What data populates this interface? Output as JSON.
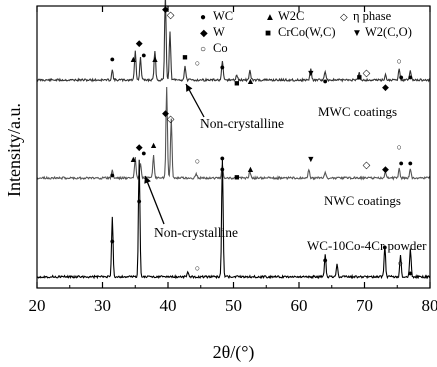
{
  "chart_data": {
    "type": "line",
    "xlabel": "2θ/(°)",
    "ylabel": "Intensity/a.u.",
    "xlim": [
      20,
      80
    ],
    "x_ticks": [
      "20",
      "30",
      "40",
      "50",
      "60",
      "70",
      "80"
    ],
    "grid": false,
    "legend_position": "top",
    "legend": [
      {
        "symbol": "●",
        "text": "WC"
      },
      {
        "symbol": "▲",
        "text": "W2C"
      },
      {
        "symbol": "◇",
        "text": "η phase"
      },
      {
        "symbol": "◆",
        "text": "W"
      },
      {
        "symbol": "■",
        "text": "CrCo(W,C)"
      },
      {
        "symbol": "▼",
        "text": "W2(C,O)"
      },
      {
        "symbol": "○",
        "text": "Co"
      }
    ],
    "annotations": [
      {
        "text": "Non-crystalline",
        "x": 39.5
      },
      {
        "text": "Non-crystalline",
        "x": 40.5
      }
    ],
    "series": [
      {
        "name": "MWC coatings",
        "color": "#333333",
        "baseline": 0.18,
        "peaks": [
          {
            "x": 31.5,
            "h": 0.1
          },
          {
            "x": 35.0,
            "h": 0.3
          },
          {
            "x": 35.8,
            "h": 0.22
          },
          {
            "x": 38.0,
            "h": 0.3
          },
          {
            "x": 39.6,
            "h": 0.86
          },
          {
            "x": 40.3,
            "h": 0.48
          },
          {
            "x": 42.6,
            "h": 0.14
          },
          {
            "x": 48.3,
            "h": 0.19
          },
          {
            "x": 50.5,
            "h": 0.05
          },
          {
            "x": 52.5,
            "h": 0.1
          },
          {
            "x": 61.8,
            "h": 0.12
          },
          {
            "x": 64.0,
            "h": 0.09
          },
          {
            "x": 69.2,
            "h": 0.08
          },
          {
            "x": 73.2,
            "h": 0.05
          },
          {
            "x": 75.3,
            "h": 0.12
          },
          {
            "x": 77.0,
            "h": 0.1
          }
        ],
        "markers": [
          {
            "x": 31.5,
            "symbol": "●"
          },
          {
            "x": 34.7,
            "symbol": "▲"
          },
          {
            "x": 35.6,
            "symbol": "◆"
          },
          {
            "x": 36.3,
            "symbol": "●"
          },
          {
            "x": 38.0,
            "symbol": "▲"
          },
          {
            "x": 39.6,
            "symbol": "◆"
          },
          {
            "x": 40.4,
            "symbol": "◇"
          },
          {
            "x": 42.6,
            "symbol": "■"
          },
          {
            "x": 44.5,
            "symbol": "○"
          },
          {
            "x": 48.3,
            "symbol": "●"
          },
          {
            "x": 50.5,
            "symbol": "■"
          },
          {
            "x": 52.6,
            "symbol": "▲"
          },
          {
            "x": 61.8,
            "symbol": "▼"
          },
          {
            "x": 64.0,
            "symbol": "●"
          },
          {
            "x": 69.2,
            "symbol": "■"
          },
          {
            "x": 70.3,
            "symbol": "◇"
          },
          {
            "x": 73.2,
            "symbol": "◆"
          },
          {
            "x": 75.3,
            "symbol": "○"
          },
          {
            "x": 75.6,
            "symbol": "●"
          },
          {
            "x": 77.0,
            "symbol": "●"
          }
        ]
      },
      {
        "name": "NWC coatings",
        "color": "#555555",
        "baseline": 0.18,
        "peaks": [
          {
            "x": 31.5,
            "h": 0.08
          },
          {
            "x": 35.0,
            "h": 0.2
          },
          {
            "x": 35.8,
            "h": 0.15
          },
          {
            "x": 37.8,
            "h": 0.22
          },
          {
            "x": 39.8,
            "h": 0.92
          },
          {
            "x": 40.5,
            "h": 0.6
          },
          {
            "x": 44.3,
            "h": 0.05
          },
          {
            "x": 48.3,
            "h": 0.12
          },
          {
            "x": 52.5,
            "h": 0.07
          },
          {
            "x": 61.5,
            "h": 0.08
          },
          {
            "x": 64.0,
            "h": 0.05
          },
          {
            "x": 73.2,
            "h": 0.06
          },
          {
            "x": 75.3,
            "h": 0.1
          },
          {
            "x": 77.0,
            "h": 0.09
          }
        ],
        "markers": [
          {
            "x": 31.5,
            "symbol": "●"
          },
          {
            "x": 34.7,
            "symbol": "▲"
          },
          {
            "x": 35.6,
            "symbol": "◆"
          },
          {
            "x": 36.3,
            "symbol": "●"
          },
          {
            "x": 37.8,
            "symbol": "▲"
          },
          {
            "x": 39.6,
            "symbol": "◆"
          },
          {
            "x": 40.4,
            "symbol": "◇"
          },
          {
            "x": 44.5,
            "symbol": "○"
          },
          {
            "x": 48.3,
            "symbol": "●"
          },
          {
            "x": 50.5,
            "symbol": "■"
          },
          {
            "x": 52.6,
            "symbol": "▲"
          },
          {
            "x": 61.8,
            "symbol": "▼"
          },
          {
            "x": 70.3,
            "symbol": "◇"
          },
          {
            "x": 73.2,
            "symbol": "◆"
          },
          {
            "x": 75.3,
            "symbol": "○"
          },
          {
            "x": 75.6,
            "symbol": "●"
          },
          {
            "x": 77.0,
            "symbol": "●"
          }
        ]
      },
      {
        "name": "WC-10Co-4Cr powder",
        "color": "#000000",
        "baseline": 0.04,
        "peaks": [
          {
            "x": 31.5,
            "h": 0.38
          },
          {
            "x": 35.6,
            "h": 0.76
          },
          {
            "x": 43.0,
            "h": 0.03
          },
          {
            "x": 48.3,
            "h": 0.76
          },
          {
            "x": 64.0,
            "h": 0.14
          },
          {
            "x": 65.8,
            "h": 0.08
          },
          {
            "x": 73.1,
            "h": 0.2
          },
          {
            "x": 75.5,
            "h": 0.14
          },
          {
            "x": 77.0,
            "h": 0.18
          }
        ],
        "markers": [
          {
            "x": 31.5,
            "symbol": "●"
          },
          {
            "x": 35.6,
            "symbol": "●"
          },
          {
            "x": 44.5,
            "symbol": "○"
          },
          {
            "x": 48.3,
            "symbol": "●"
          },
          {
            "x": 64.0,
            "symbol": "●"
          },
          {
            "x": 73.1,
            "symbol": "●"
          },
          {
            "x": 75.5,
            "symbol": "○"
          },
          {
            "x": 77.0,
            "symbol": "●"
          }
        ]
      }
    ]
  }
}
